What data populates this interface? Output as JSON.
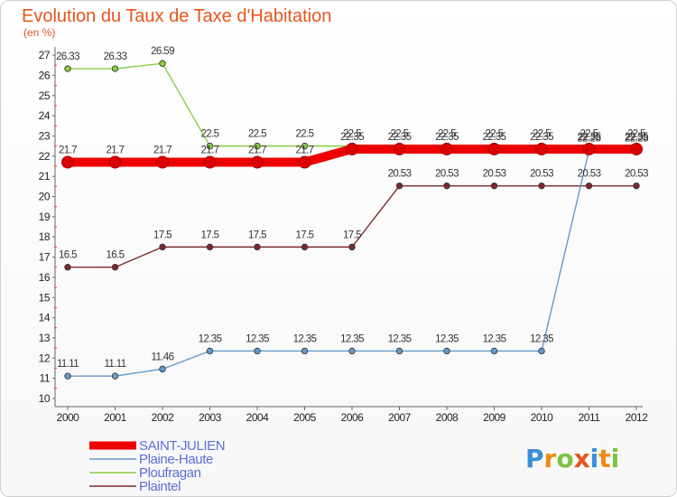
{
  "chart_data": {
    "type": "line",
    "title": "Evolution du Taux de Taxe d'Habitation",
    "subtitle": "(en %)",
    "x": [
      "2000",
      "2001",
      "2002",
      "2003",
      "2004",
      "2005",
      "2006",
      "2007",
      "2008",
      "2009",
      "2010",
      "2011",
      "2012"
    ],
    "ylim": [
      10,
      27
    ],
    "yticks": [
      10,
      11,
      12,
      13,
      14,
      15,
      16,
      17,
      18,
      19,
      20,
      21,
      22,
      23,
      24,
      25,
      26,
      27
    ],
    "grid": false,
    "legend_position": "bottom-left",
    "series": [
      {
        "name": "SAINT-JULIEN",
        "color": "#ee0000",
        "values": [
          21.7,
          21.7,
          21.7,
          21.7,
          21.7,
          21.7,
          22.35,
          22.35,
          22.35,
          22.35,
          22.35,
          22.35,
          22.35
        ],
        "labels": [
          "21.7",
          "21.7",
          "21.7",
          "21.7",
          "21.7",
          "21.7",
          "22.35",
          "22.35",
          "22.35",
          "22.35",
          "22.35",
          "22.35",
          "22.35"
        ]
      },
      {
        "name": "Plaine-Haute",
        "color": "#6699cc",
        "values": [
          11.11,
          11.11,
          11.46,
          12.35,
          12.35,
          12.35,
          12.35,
          12.35,
          12.35,
          12.35,
          12.35,
          22.28,
          22.28
        ],
        "labels": [
          "11.11",
          "11.11",
          "11.46",
          "12.35",
          "12.35",
          "12.35",
          "12.35",
          "12.35",
          "12.35",
          "12.35",
          "12.35",
          "22.28",
          "22.28"
        ]
      },
      {
        "name": "Ploufragan",
        "color": "#88cc44",
        "values": [
          26.33,
          26.33,
          26.59,
          22.5,
          22.5,
          22.5,
          22.5,
          22.5,
          22.5,
          22.5,
          22.5,
          22.5,
          22.5
        ],
        "labels": [
          "26.33",
          "26.33",
          "26.59",
          "22.5",
          "22.5",
          "22.5",
          "22.5",
          "22.5",
          "22.5",
          "22.5",
          "22.5",
          "22.5",
          "22.5"
        ]
      },
      {
        "name": "Plaintel",
        "color": "#7a2a2a",
        "values": [
          16.5,
          16.5,
          17.5,
          17.5,
          17.5,
          17.5,
          17.5,
          20.53,
          20.53,
          20.53,
          20.53,
          20.53,
          20.53
        ],
        "labels": [
          "16.5",
          "16.5",
          "17.5",
          "17.5",
          "17.5",
          "17.5",
          "17.5",
          "20.53",
          "20.53",
          "20.53",
          "20.53",
          "20.53",
          "20.53"
        ]
      }
    ]
  },
  "logo": {
    "letters": [
      "P",
      "r",
      "o",
      "x",
      "i",
      "t",
      "i"
    ],
    "colors": [
      "#3a8fd9",
      "#ef8a1a",
      "#7cc242",
      "#e8541e",
      "#3a8fd9",
      "#ef8a1a",
      "#7cc242"
    ]
  }
}
